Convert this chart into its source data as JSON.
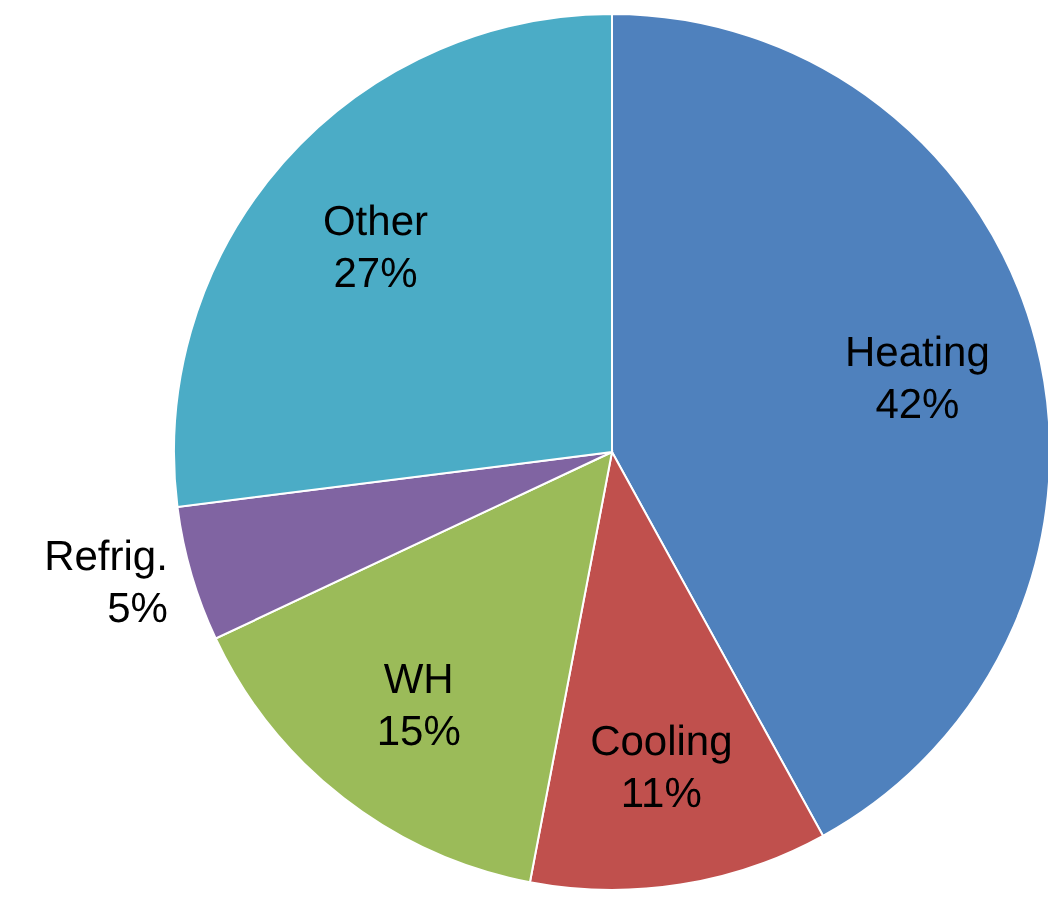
{
  "chart_data": {
    "type": "pie",
    "categories": [
      "Heating",
      "Cooling",
      "WH",
      "Refrig.",
      "Other"
    ],
    "values": [
      42,
      11,
      15,
      5,
      27
    ],
    "colors": [
      "#4f81bd",
      "#c0504d",
      "#9bbb59",
      "#8064a2",
      "#4bacc6"
    ],
    "value_labels": [
      "42%",
      "11%",
      "15%",
      "5%",
      "27%"
    ]
  }
}
